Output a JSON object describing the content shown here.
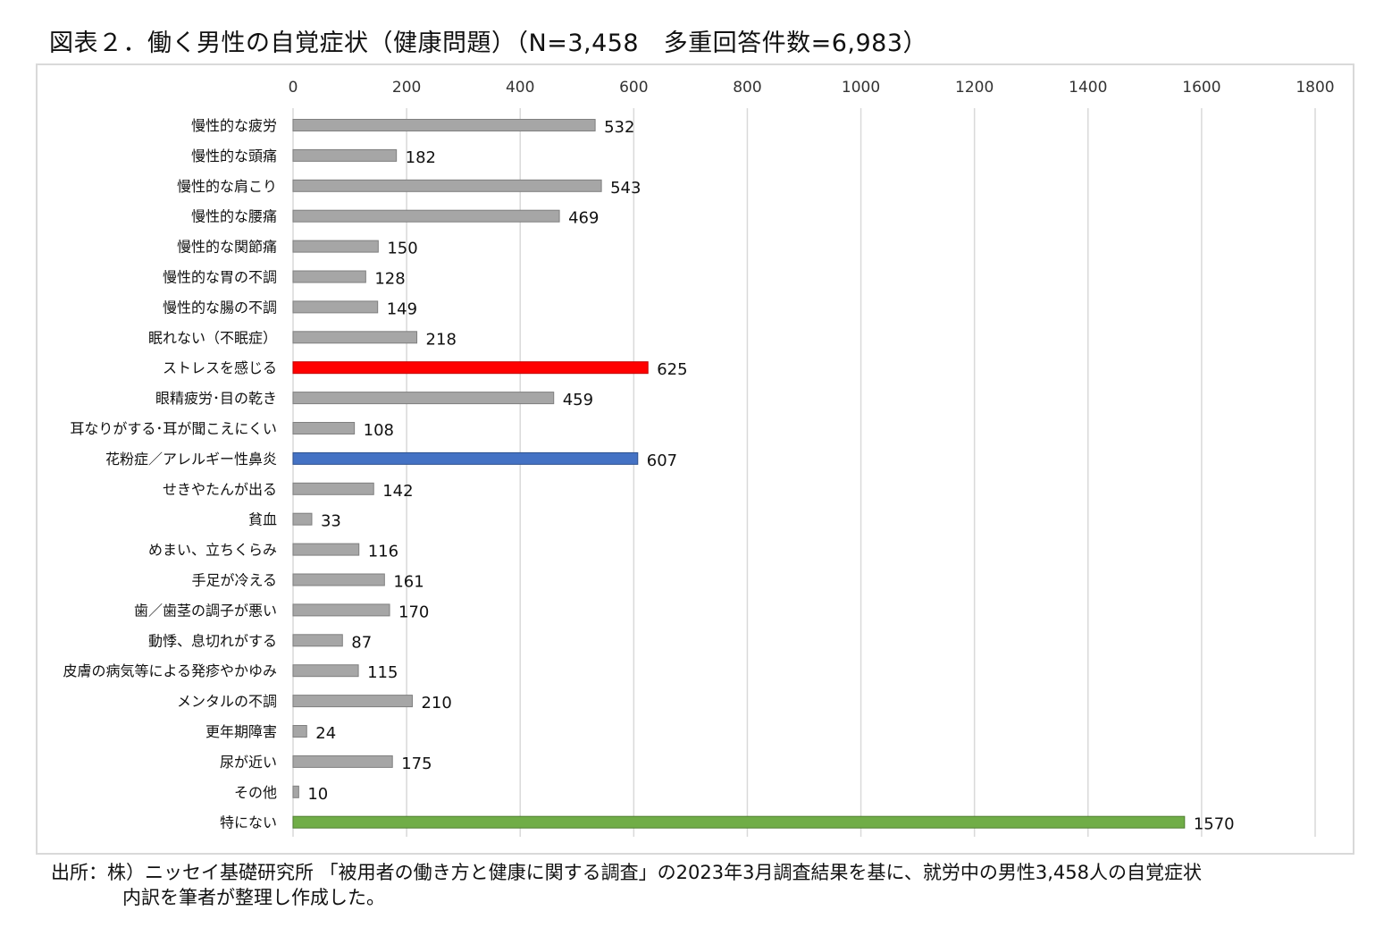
{
  "title": "図表２．働く男性の自覚症状（健康問題）（N=3,458　多重回答件数=6,983）",
  "source": {
    "line1": "出所：株）ニッセイ基礎研究所 「被用者の働き方と健康に関する調査」の2023年3月調査結果を基に、就労中の男性3,458人の自覚症状",
    "line2": "内訳を筆者が整理し作成した。"
  },
  "chart_data": {
    "type": "bar",
    "orientation": "horizontal",
    "title": "",
    "xlabel": "",
    "ylabel": "",
    "xlim": [
      0,
      1800
    ],
    "xticks": [
      0,
      200,
      400,
      600,
      800,
      1000,
      1200,
      1400,
      1600,
      1800
    ],
    "tick_position": "top",
    "grid": "vertical",
    "legend": "none",
    "colors": {
      "default": "#a6a6a6",
      "red": "#ff0000",
      "blue": "#4472c4",
      "green": "#70ad47"
    },
    "categories": [
      "慢性的な疲労",
      "慢性的な頭痛",
      "慢性的な肩こり",
      "慢性的な腰痛",
      "慢性的な関節痛",
      "慢性的な胃の不調",
      "慢性的な腸の不調",
      "眠れない（不眠症）",
      "ストレスを感じる",
      "眼精疲労･目の乾き",
      "耳なりがする･耳が聞こえにくい",
      "花粉症／アレルギー性鼻炎",
      "せきやたんが出る",
      "貧血",
      "めまい、立ちくらみ",
      "手足が冷える",
      "歯／歯茎の調子が悪い",
      "動悸、息切れがする",
      "皮膚の病気等による発疹やかゆみ",
      "メンタルの不調",
      "更年期障害",
      "尿が近い",
      "その他",
      "特にない"
    ],
    "values": [
      532,
      182,
      543,
      469,
      150,
      128,
      149,
      218,
      625,
      459,
      108,
      607,
      142,
      33,
      116,
      161,
      170,
      87,
      115,
      210,
      24,
      175,
      10,
      1570
    ],
    "bar_colors": [
      "default",
      "default",
      "default",
      "default",
      "default",
      "default",
      "default",
      "default",
      "red",
      "default",
      "default",
      "blue",
      "default",
      "default",
      "default",
      "default",
      "default",
      "default",
      "default",
      "default",
      "default",
      "default",
      "default",
      "green"
    ]
  }
}
